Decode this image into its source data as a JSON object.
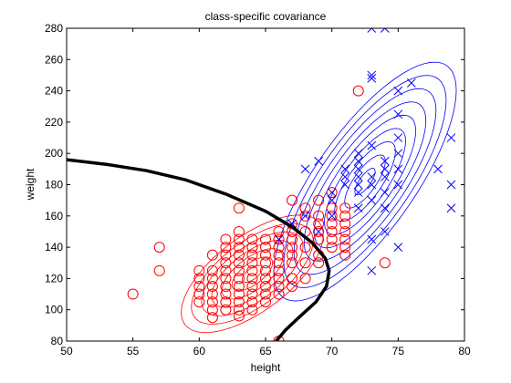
{
  "chart_data": {
    "type": "scatter",
    "title": "class-specific covariance",
    "xlabel": "height",
    "ylabel": "weight",
    "xlim": [
      50,
      80
    ],
    "ylim": [
      80,
      280
    ],
    "xticks": [
      50,
      55,
      60,
      65,
      70,
      75,
      80
    ],
    "yticks": [
      80,
      100,
      120,
      140,
      160,
      180,
      200,
      220,
      240,
      260,
      280
    ],
    "grid": false,
    "legend": "none",
    "colors": {
      "class1": "#ff0000",
      "class2": "#0000ff",
      "boundary": "#000000",
      "axes": "#000000"
    },
    "series": [
      {
        "marker": "circle",
        "color": "#ff0000",
        "points": [
          [
            55,
            110
          ],
          [
            57,
            125
          ],
          [
            57,
            140
          ],
          [
            60,
            105
          ],
          [
            60,
            110
          ],
          [
            60,
            115
          ],
          [
            60,
            120
          ],
          [
            60,
            125
          ],
          [
            61,
            95
          ],
          [
            61,
            100
          ],
          [
            61,
            105
          ],
          [
            61,
            110
          ],
          [
            61,
            115
          ],
          [
            61,
            120
          ],
          [
            61,
            125
          ],
          [
            61,
            135
          ],
          [
            62,
            100
          ],
          [
            62,
            105
          ],
          [
            62,
            110
          ],
          [
            62,
            115
          ],
          [
            62,
            120
          ],
          [
            62,
            125
          ],
          [
            62,
            130
          ],
          [
            62,
            135
          ],
          [
            62,
            140
          ],
          [
            62,
            145
          ],
          [
            63,
            96
          ],
          [
            63,
            100
          ],
          [
            63,
            105
          ],
          [
            63,
            110
          ],
          [
            63,
            115
          ],
          [
            63,
            120
          ],
          [
            63,
            125
          ],
          [
            63,
            130
          ],
          [
            63,
            135
          ],
          [
            63,
            140
          ],
          [
            63,
            145
          ],
          [
            63,
            150
          ],
          [
            63,
            165
          ],
          [
            64,
            100
          ],
          [
            64,
            105
          ],
          [
            64,
            110
          ],
          [
            64,
            115
          ],
          [
            64,
            120
          ],
          [
            64,
            125
          ],
          [
            64,
            130
          ],
          [
            64,
            135
          ],
          [
            64,
            140
          ],
          [
            64,
            145
          ],
          [
            65,
            105
          ],
          [
            65,
            110
          ],
          [
            65,
            115
          ],
          [
            65,
            120
          ],
          [
            65,
            125
          ],
          [
            65,
            130
          ],
          [
            65,
            135
          ],
          [
            65,
            140
          ],
          [
            65,
            145
          ],
          [
            66,
            80
          ],
          [
            66,
            110
          ],
          [
            66,
            115
          ],
          [
            66,
            120
          ],
          [
            66,
            125
          ],
          [
            66,
            130
          ],
          [
            66,
            135
          ],
          [
            66,
            140
          ],
          [
            66,
            145
          ],
          [
            66,
            150
          ],
          [
            67,
            115
          ],
          [
            67,
            120
          ],
          [
            67,
            130
          ],
          [
            67,
            135
          ],
          [
            67,
            140
          ],
          [
            67,
            145
          ],
          [
            67,
            150
          ],
          [
            67,
            155
          ],
          [
            67,
            170
          ],
          [
            68,
            120
          ],
          [
            68,
            130
          ],
          [
            68,
            140
          ],
          [
            68,
            150
          ],
          [
            68,
            160
          ],
          [
            68,
            165
          ],
          [
            69,
            130
          ],
          [
            69,
            135
          ],
          [
            69,
            145
          ],
          [
            69,
            150
          ],
          [
            69,
            155
          ],
          [
            69,
            160
          ],
          [
            69,
            170
          ],
          [
            70,
            140
          ],
          [
            70,
            145
          ],
          [
            70,
            150
          ],
          [
            70,
            155
          ],
          [
            70,
            160
          ],
          [
            70,
            165
          ],
          [
            70,
            175
          ],
          [
            71,
            135
          ],
          [
            71,
            140
          ],
          [
            71,
            145
          ],
          [
            71,
            150
          ],
          [
            71,
            155
          ],
          [
            71,
            160
          ],
          [
            71,
            165
          ],
          [
            72,
            240
          ],
          [
            74,
            130
          ]
        ]
      },
      {
        "marker": "x",
        "color": "#0000ff",
        "points": [
          [
            66,
            145
          ],
          [
            67,
            155
          ],
          [
            68,
            160
          ],
          [
            68,
            190
          ],
          [
            69,
            150
          ],
          [
            69,
            195
          ],
          [
            70,
            160
          ],
          [
            70,
            170
          ],
          [
            70,
            175
          ],
          [
            71,
            180
          ],
          [
            71,
            185
          ],
          [
            71,
            190
          ],
          [
            72,
            165
          ],
          [
            72,
            175
          ],
          [
            72,
            180
          ],
          [
            72,
            185
          ],
          [
            72,
            190
          ],
          [
            72,
            195
          ],
          [
            72,
            200
          ],
          [
            73,
            125
          ],
          [
            73,
            145
          ],
          [
            73,
            170
          ],
          [
            73,
            180
          ],
          [
            73,
            185
          ],
          [
            73,
            205
          ],
          [
            73,
            248
          ],
          [
            73,
            250
          ],
          [
            73,
            280
          ],
          [
            74,
            150
          ],
          [
            74,
            165
          ],
          [
            74,
            175
          ],
          [
            74,
            185
          ],
          [
            74,
            190
          ],
          [
            74,
            195
          ],
          [
            74,
            280
          ],
          [
            75,
            140
          ],
          [
            75,
            180
          ],
          [
            75,
            190
          ],
          [
            75,
            200
          ],
          [
            75,
            210
          ],
          [
            75,
            225
          ],
          [
            75,
            240
          ],
          [
            76,
            245
          ],
          [
            78,
            190
          ],
          [
            79,
            165
          ],
          [
            79,
            180
          ],
          [
            79,
            210
          ]
        ]
      }
    ],
    "contours": [
      {
        "color": "#ff0000",
        "center": [
          64,
          123
        ],
        "cov": [
          [
            6.5,
            30
          ],
          [
            30,
            320
          ]
        ],
        "levels": [
          0.3,
          0.6,
          0.9,
          1.2,
          1.5,
          1.8,
          2.1
        ]
      },
      {
        "color": "#0000ff",
        "center": [
          72.5,
          182
        ],
        "cov": [
          [
            6.5,
            55
          ],
          [
            55,
            800
          ]
        ],
        "levels": [
          0.3,
          0.6,
          0.9,
          1.2,
          1.5,
          1.8,
          2.1,
          2.4,
          2.7
        ]
      }
    ],
    "decision_boundary": [
      [
        50,
        196
      ],
      [
        53,
        193
      ],
      [
        56,
        189
      ],
      [
        59,
        183
      ],
      [
        62,
        174
      ],
      [
        65,
        163
      ],
      [
        67,
        153
      ],
      [
        68.5,
        143
      ],
      [
        69.5,
        133
      ],
      [
        69.8,
        125
      ],
      [
        69.6,
        115
      ],
      [
        68.8,
        105
      ],
      [
        67.5,
        95
      ],
      [
        66.5,
        87
      ],
      [
        65.8,
        80
      ]
    ]
  }
}
